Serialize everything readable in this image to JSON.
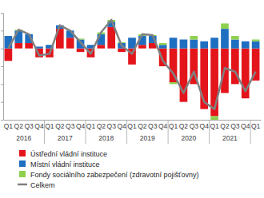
{
  "chart_data": {
    "type": "bar",
    "stacked": true,
    "categories": [
      "Q1",
      "Q2",
      "Q3",
      "Q4",
      "Q1",
      "Q2",
      "Q3",
      "Q4",
      "Q1",
      "Q2",
      "Q3",
      "Q4",
      "Q1",
      "Q2",
      "Q3",
      "Q4",
      "Q1",
      "Q2",
      "Q3",
      "Q4",
      "Q1",
      "Q2",
      "Q3",
      "Q4",
      "Q1"
    ],
    "years": [
      "2016",
      "2017",
      "2018",
      "2019",
      "2020",
      "2021"
    ],
    "series": [
      {
        "name": "Ústřední vládní instituce",
        "color": "#e3151b",
        "values": [
          -0.7,
          0.3,
          0.3,
          -0.5,
          -0.5,
          1.1,
          0.6,
          -0.2,
          -0.5,
          0.2,
          1.2,
          -0.2,
          -0.9,
          0.2,
          0.3,
          -1.0,
          -1.9,
          -3.0,
          -2.0,
          -3.4,
          -3.8,
          -2.5,
          -2.0,
          -2.8,
          -1.8
        ]
      },
      {
        "name": "Místní vládní instituce",
        "color": "#1f6fc1",
        "values": [
          0.7,
          0.7,
          0.5,
          0.1,
          0.2,
          0.2,
          0.4,
          0.5,
          0.2,
          0.6,
          0.3,
          0.3,
          0.6,
          0.5,
          0.4,
          0.2,
          0.6,
          0.5,
          0.5,
          0.4,
          0.6,
          1.1,
          0.5,
          0.4,
          0.4
        ]
      },
      {
        "name": "Fondy sociálního zabezpečení (zdravotní pojišťovny)",
        "color": "#8fd14f",
        "values": [
          0,
          0.05,
          0,
          0,
          0,
          0,
          0,
          0.05,
          0,
          0.1,
          0.1,
          0.05,
          0,
          0.1,
          0.05,
          0.1,
          -0.1,
          0,
          0.2,
          0,
          -0.2,
          0.3,
          0.2,
          0,
          0.1
        ]
      },
      {
        "name": "Celkem",
        "color": "#808080",
        "type": "line",
        "values": [
          0,
          1.05,
          0.8,
          -0.4,
          -0.3,
          1.3,
          1.0,
          0.35,
          -0.3,
          0.9,
          1.6,
          0.15,
          -0.3,
          0.8,
          0.75,
          -0.7,
          -1.4,
          -2.5,
          -1.3,
          -3.0,
          -3.4,
          -1.1,
          -1.3,
          -2.4,
          -1.3
        ]
      }
    ],
    "ylim": [
      -4,
      2
    ],
    "yticks": [
      -4,
      -3,
      -2,
      -1,
      0,
      1,
      2
    ],
    "grid": false,
    "tick_labels": "x",
    "legend": "bottom"
  }
}
